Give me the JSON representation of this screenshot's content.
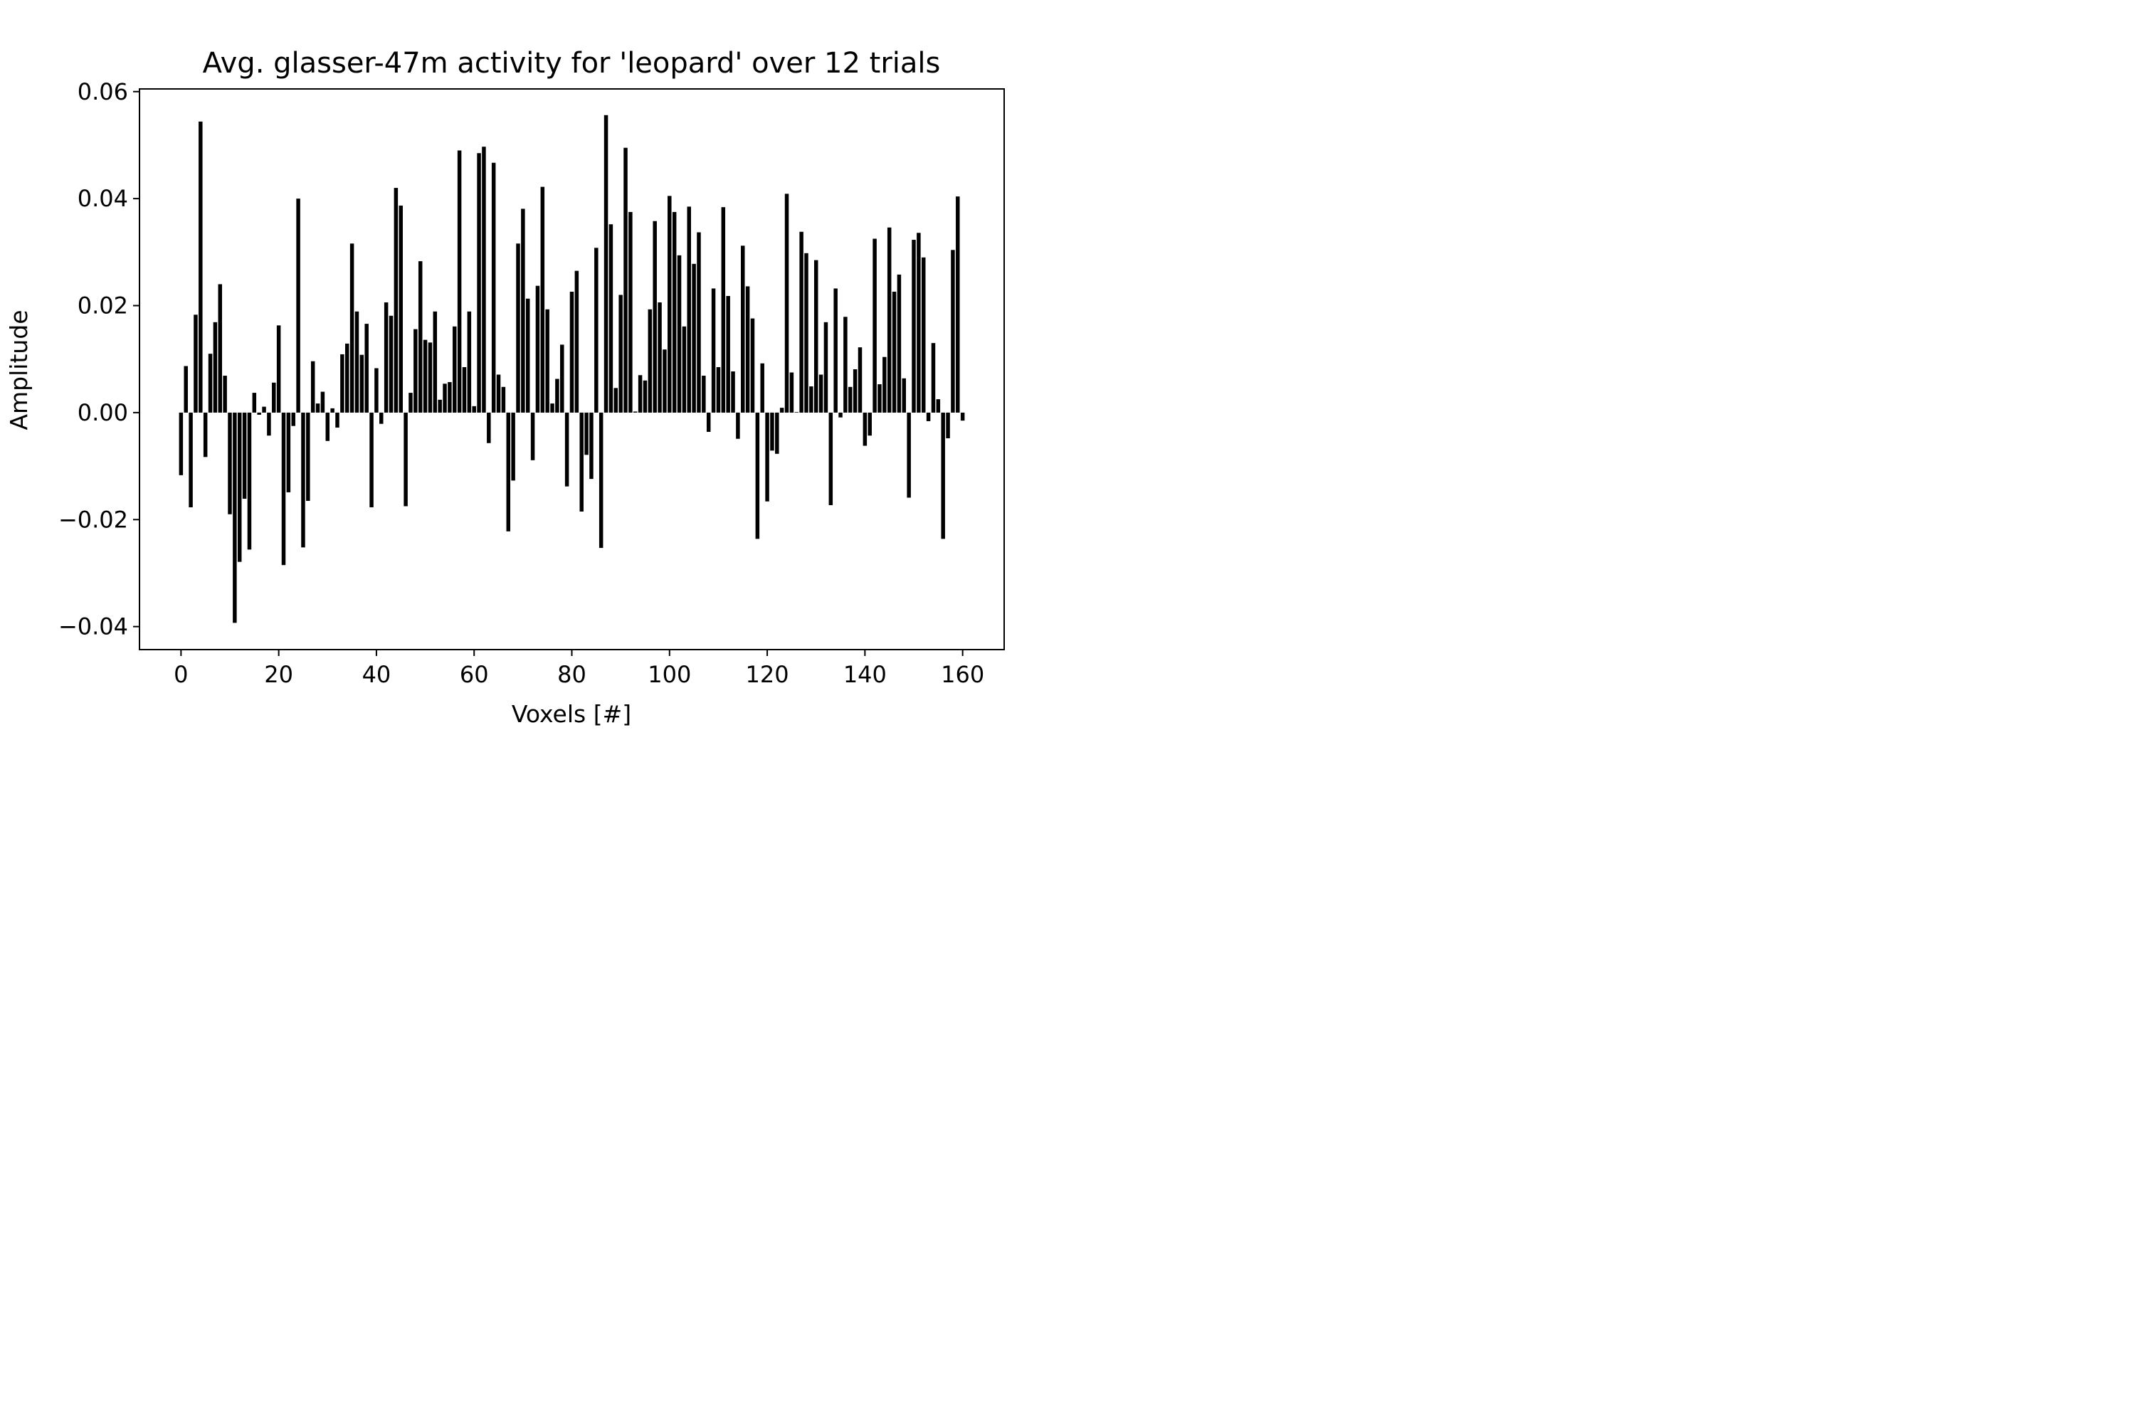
{
  "chart_data": {
    "type": "bar",
    "title": "Avg. glasser-47m activity for 'leopard' over 12 trials",
    "xlabel": "Voxels [#]",
    "ylabel": "Amplitude",
    "xlim": [
      -8.5,
      168.5
    ],
    "ylim": [
      -0.0443,
      0.0605
    ],
    "xticks": [
      0,
      20,
      40,
      60,
      80,
      100,
      120,
      140,
      160
    ],
    "xtick_labels": [
      "0",
      "20",
      "40",
      "60",
      "80",
      "100",
      "120",
      "140",
      "160"
    ],
    "yticks": [
      -0.04,
      -0.02,
      0.0,
      0.02,
      0.04,
      0.06
    ],
    "ytick_labels": [
      "−0.04",
      "−0.02",
      "0.00",
      "0.02",
      "0.04",
      "0.06"
    ],
    "grid": false,
    "bar_color": "#000000",
    "x": [
      0,
      1,
      2,
      3,
      4,
      5,
      6,
      7,
      8,
      9,
      10,
      11,
      12,
      13,
      14,
      15,
      16,
      17,
      18,
      19,
      20,
      21,
      22,
      23,
      24,
      25,
      26,
      27,
      28,
      29,
      30,
      31,
      32,
      33,
      34,
      35,
      36,
      37,
      38,
      39,
      40,
      41,
      42,
      43,
      44,
      45,
      46,
      47,
      48,
      49,
      50,
      51,
      52,
      53,
      54,
      55,
      56,
      57,
      58,
      59,
      60,
      61,
      62,
      63,
      64,
      65,
      66,
      67,
      68,
      69,
      70,
      71,
      72,
      73,
      74,
      75,
      76,
      77,
      78,
      79,
      80,
      81,
      82,
      83,
      84,
      85,
      86,
      87,
      88,
      89,
      90,
      91,
      92,
      93,
      94,
      95,
      96,
      97,
      98,
      99,
      100,
      101,
      102,
      103,
      104,
      105,
      106,
      107,
      108,
      109,
      110,
      111,
      112,
      113,
      114,
      115,
      116,
      117,
      118,
      119,
      120,
      121,
      122,
      123,
      124,
      125,
      126,
      127,
      128,
      129,
      130,
      131,
      132,
      133,
      134,
      135,
      136,
      137,
      138,
      139,
      140,
      141,
      142,
      143,
      144,
      145,
      146,
      147,
      148,
      149,
      150,
      151,
      152,
      153,
      154,
      155,
      156,
      157,
      158,
      159,
      160
    ],
    "values": [
      -0.0117,
      0.0087,
      -0.0177,
      0.0183,
      0.0544,
      -0.0083,
      0.011,
      0.0169,
      0.024,
      0.0069,
      -0.019,
      -0.0393,
      -0.0279,
      -0.0161,
      -0.0256,
      0.0037,
      -0.0004,
      0.0011,
      -0.0043,
      0.0056,
      0.0163,
      -0.0285,
      -0.0149,
      -0.0025,
      0.04,
      -0.0252,
      -0.0165,
      0.0096,
      0.0017,
      0.0039,
      -0.0053,
      0.0008,
      -0.0028,
      0.0109,
      0.0129,
      0.0316,
      0.0189,
      0.0108,
      0.0166,
      -0.0177,
      0.0083,
      -0.0021,
      0.0206,
      0.0181,
      0.042,
      0.0387,
      -0.0175,
      0.0037,
      0.0156,
      0.0283,
      0.0136,
      0.0131,
      0.0189,
      0.0024,
      0.0054,
      0.0057,
      0.0161,
      0.049,
      0.0085,
      0.0189,
      0.0012,
      0.0485,
      0.0497,
      -0.0057,
      0.0467,
      0.0071,
      0.0048,
      -0.0222,
      -0.0127,
      0.0316,
      0.0381,
      0.0213,
      -0.0089,
      0.0237,
      0.0422,
      0.0193,
      0.0017,
      0.0063,
      0.0127,
      -0.0138,
      0.0226,
      0.0265,
      -0.0185,
      -0.0079,
      -0.0124,
      0.0308,
      -0.0253,
      0.0556,
      0.0352,
      0.0046,
      0.022,
      0.0495,
      0.0375,
      0.0002,
      0.007,
      0.006,
      0.0193,
      0.0358,
      0.0206,
      0.0118,
      0.0405,
      0.0375,
      0.0294,
      0.0161,
      0.0385,
      0.0278,
      0.0337,
      0.0069,
      -0.0036,
      0.0232,
      0.0085,
      0.0384,
      0.0218,
      0.0077,
      -0.0049,
      0.0312,
      0.0236,
      0.0176,
      -0.0236,
      0.0092,
      -0.0166,
      -0.0071,
      -0.0077,
      0.0009,
      0.0409,
      0.0075,
      0.0001,
      0.0338,
      0.0298,
      0.0049,
      0.0285,
      0.0071,
      0.0169,
      -0.0173,
      0.0232,
      -0.0009,
      0.0179,
      0.0048,
      0.0081,
      0.0122,
      -0.0062,
      -0.0043,
      0.0325,
      0.0053,
      0.0104,
      0.0346,
      0.0226,
      0.0258,
      0.0064,
      -0.0159,
      0.0323,
      0.0336,
      0.029,
      -0.0016,
      0.013,
      0.0025,
      -0.0236,
      -0.0048,
      0.0304,
      0.0404,
      -0.0015
    ]
  }
}
